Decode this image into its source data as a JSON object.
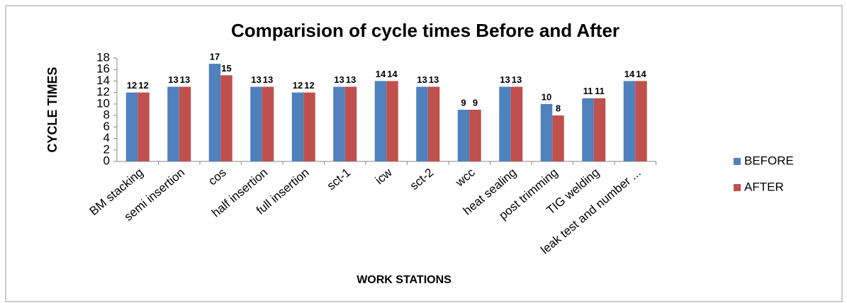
{
  "chart_data": {
    "type": "bar",
    "title": "Comparision of cycle times Before and After",
    "x_label": "WORK STATIONS",
    "y_label": "CYCLE TIMES",
    "categories": [
      "BM stacking",
      "semi insertion",
      "cos",
      "half insertion",
      "full insertion",
      "sct-1",
      "icw",
      "sct-2",
      "wcc",
      "heat sealing",
      "post trimming",
      "TIG welding",
      "leak test and number ..."
    ],
    "series": [
      {
        "name": "BEFORE",
        "color": "#4f81bd",
        "values": [
          12,
          13,
          17,
          13,
          12,
          13,
          14,
          13,
          9,
          13,
          10,
          11,
          14
        ]
      },
      {
        "name": "AFTER",
        "color": "#c0504d",
        "values": [
          12,
          13,
          15,
          13,
          12,
          13,
          14,
          13,
          9,
          13,
          8,
          11,
          14
        ]
      }
    ],
    "ylim": [
      0,
      18
    ],
    "yticks": [
      0,
      2,
      4,
      6,
      8,
      10,
      12,
      14,
      16,
      18
    ],
    "grid": false,
    "legend": "right"
  }
}
